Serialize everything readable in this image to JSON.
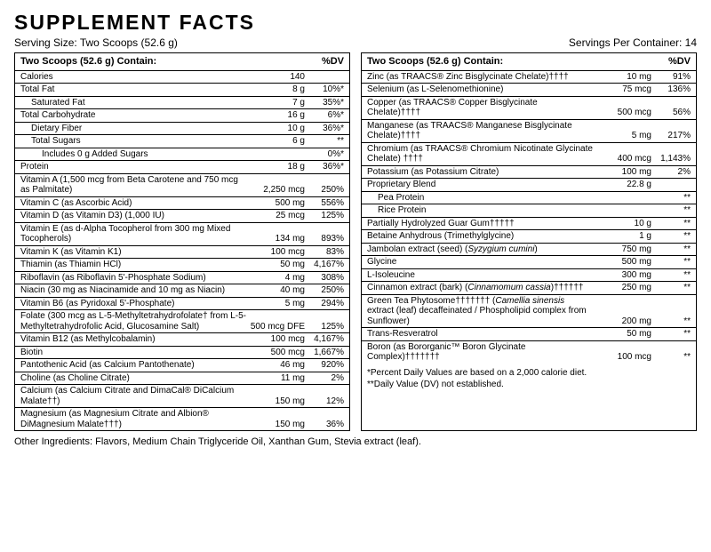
{
  "title": "SUPPLEMENT FACTS",
  "serving_size": "Serving Size: Two Scoops (52.6 g)",
  "servings_per": "Servings Per Container: 14",
  "header_label": "Two Scoops (52.6 g) Contain:",
  "header_dv": "%DV",
  "left": [
    {
      "l": "Calories",
      "a": "140",
      "d": "",
      "i": 0
    },
    {
      "l": "Total Fat",
      "a": "8 g",
      "d": "10%*",
      "i": 0
    },
    {
      "l": "Saturated Fat",
      "a": "7 g",
      "d": "35%*",
      "i": 1
    },
    {
      "l": "Total Carbohydrate",
      "a": "16 g",
      "d": "6%*",
      "i": 0
    },
    {
      "l": "Dietary Fiber",
      "a": "10 g",
      "d": "36%*",
      "i": 1
    },
    {
      "l": "Total Sugars",
      "a": "6 g",
      "d": "**",
      "i": 1
    },
    {
      "l": "Includes 0 g Added Sugars",
      "a": "",
      "d": "0%*",
      "i": 2
    },
    {
      "l": "Protein",
      "a": "18 g",
      "d": "36%*",
      "i": 0
    },
    {
      "l": "Vitamin A (1,500 mcg from Beta Carotene and 750 mcg as Palmitate)",
      "a": "2,250 mcg",
      "d": "250%",
      "i": 0
    },
    {
      "l": "Vitamin C (as Ascorbic Acid)",
      "a": "500 mg",
      "d": "556%",
      "i": 0
    },
    {
      "l": "Vitamin D (as Vitamin D3) (1,000 IU)",
      "a": "25 mcg",
      "d": "125%",
      "i": 0
    },
    {
      "l": "Vitamin E (as d-Alpha Tocopherol from 300 mg Mixed Tocopherols)",
      "a": "134 mg",
      "d": "893%",
      "i": 0
    },
    {
      "l": "Vitamin K (as Vitamin K1)",
      "a": "100 mcg",
      "d": "83%",
      "i": 0
    },
    {
      "l": "Thiamin (as Thiamin HCl)",
      "a": "50 mg",
      "d": "4,167%",
      "i": 0
    },
    {
      "l": "Riboflavin (as Riboflavin 5'-Phosphate Sodium)",
      "a": "4 mg",
      "d": "308%",
      "i": 0
    },
    {
      "l": "Niacin (30 mg as Niacinamide and 10 mg as Niacin)",
      "a": "40 mg",
      "d": "250%",
      "i": 0
    },
    {
      "l": "Vitamin B6 (as Pyridoxal 5'-Phosphate)",
      "a": "5 mg",
      "d": "294%",
      "i": 0
    },
    {
      "l": "Folate (300 mcg as L-5-Methyltetrahydrofolate† from L-5-Methyltetrahydrofolic Acid, Glucosamine Salt)",
      "a": "500 mcg DFE",
      "d": "125%",
      "i": 0
    },
    {
      "l": "Vitamin B12 (as Methylcobalamin)",
      "a": "100 mcg",
      "d": "4,167%",
      "i": 0
    },
    {
      "l": "Biotin",
      "a": "500 mcg",
      "d": "1,667%",
      "i": 0
    },
    {
      "l": "Pantothenic Acid (as Calcium Pantothenate)",
      "a": "46 mg",
      "d": "920%",
      "i": 0
    },
    {
      "l": "Choline (as Choline Citrate)",
      "a": "11 mg",
      "d": "2%",
      "i": 0
    },
    {
      "l": "Calcium (as Calcium Citrate and DimaCal® DiCalcium Malate††)",
      "a": "150 mg",
      "d": "12%",
      "i": 0
    },
    {
      "l": "Magnesium (as Magnesium Citrate and Albion® DiMagnesium Malate†††)",
      "a": "150 mg",
      "d": "36%",
      "i": 0
    }
  ],
  "right": [
    {
      "l": "Zinc (as TRAACS® Zinc Bisglycinate Chelate)††††",
      "a": "10 mg",
      "d": "91%",
      "i": 0
    },
    {
      "l": "Selenium (as L-Selenomethionine)",
      "a": "75 mcg",
      "d": "136%",
      "i": 0
    },
    {
      "l": "Copper (as TRAACS® Copper Bisglycinate Chelate)††††",
      "a": "500 mcg",
      "d": "56%",
      "i": 0
    },
    {
      "l": "Manganese (as TRAACS® Manganese Bisglycinate Chelate)††††",
      "a": "5 mg",
      "d": "217%",
      "i": 0
    },
    {
      "l": "Chromium (as TRAACS® Chromium Nicotinate Glycinate Chelate) ††††",
      "a": "400 mcg",
      "d": "1,143%",
      "i": 0
    },
    {
      "l": "Potassium (as Potassium Citrate)",
      "a": "100 mg",
      "d": "2%",
      "i": 0
    },
    {
      "l": "Proprietary Blend",
      "a": "22.8 g",
      "d": "",
      "i": 0
    },
    {
      "l": "Pea Protein",
      "a": "",
      "d": "**",
      "i": 1
    },
    {
      "l": "Rice Protein",
      "a": "",
      "d": "**",
      "i": 1
    },
    {
      "l": "Partially Hydrolyzed Guar Gum†††††",
      "a": "10 g",
      "d": "**",
      "i": 0
    },
    {
      "l": "Betaine Anhydrous (Trimethylglycine)",
      "a": "1 g",
      "d": "**",
      "i": 0
    },
    {
      "l": "Jambolan extract (seed) (<i>Syzygium cumini</i>)",
      "a": "750 mg",
      "d": "**",
      "i": 0,
      "html": true
    },
    {
      "l": "Glycine",
      "a": "500 mg",
      "d": "**",
      "i": 0
    },
    {
      "l": "L-Isoleucine",
      "a": "300 mg",
      "d": "**",
      "i": 0
    },
    {
      "l": "Cinnamon extract (bark) (<i>Cinnamomum cassia</i>)††††††",
      "a": "250 mg",
      "d": "**",
      "i": 0,
      "html": true
    },
    {
      "l": "Green Tea Phytosome††††††† (<i>Camellia sinensis</i> extract (leaf) decaffeinated / Phospholipid complex from Sunflower)",
      "a": "200 mg",
      "d": "**",
      "i": 0,
      "html": true
    },
    {
      "l": "Trans-Resveratrol",
      "a": "50 mg",
      "d": "**",
      "i": 0
    },
    {
      "l": "Boron (as Bororganic™ Boron Glycinate Complex)†††††††",
      "a": "100 mcg",
      "d": "**",
      "i": 0
    }
  ],
  "note1": "*Percent Daily Values are based on a 2,000 calorie diet.",
  "note2": "**Daily Value (DV) not established.",
  "other": "Other Ingredients: Flavors, Medium Chain Triglyceride Oil, Xanthan Gum, Stevia extract (leaf)."
}
